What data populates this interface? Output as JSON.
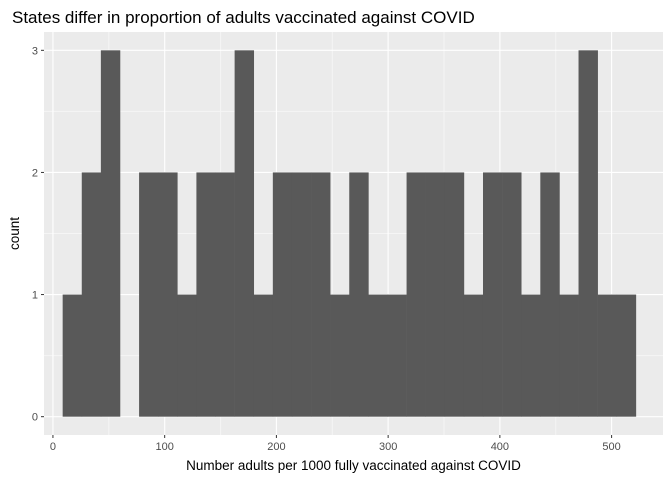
{
  "chart_data": {
    "type": "bar",
    "subtype": "histogram",
    "title": "States differ in proportion of adults vaccinated against COVID",
    "xlabel": "Number adults per 1000 fully vaccinated against COVID",
    "ylabel": "count",
    "xlim": [
      -8,
      546
    ],
    "ylim": [
      -0.15,
      3.15
    ],
    "x_ticks": [
      0,
      100,
      200,
      300,
      400,
      500
    ],
    "y_ticks": [
      0,
      1,
      2,
      3
    ],
    "bin_width": 17.1,
    "bin_start": 8.7,
    "counts": [
      1,
      2,
      3,
      0,
      2,
      2,
      1,
      2,
      2,
      3,
      1,
      2,
      2,
      2,
      1,
      2,
      1,
      1,
      2,
      2,
      2,
      1,
      2,
      2,
      1,
      2,
      1,
      3,
      1,
      1
    ],
    "colors": {
      "bar": "#595959",
      "panel": "#ebebeb",
      "grid_major": "#ffffff",
      "grid_minor": "#f5f5f5"
    },
    "grid": true,
    "legend": "none"
  }
}
